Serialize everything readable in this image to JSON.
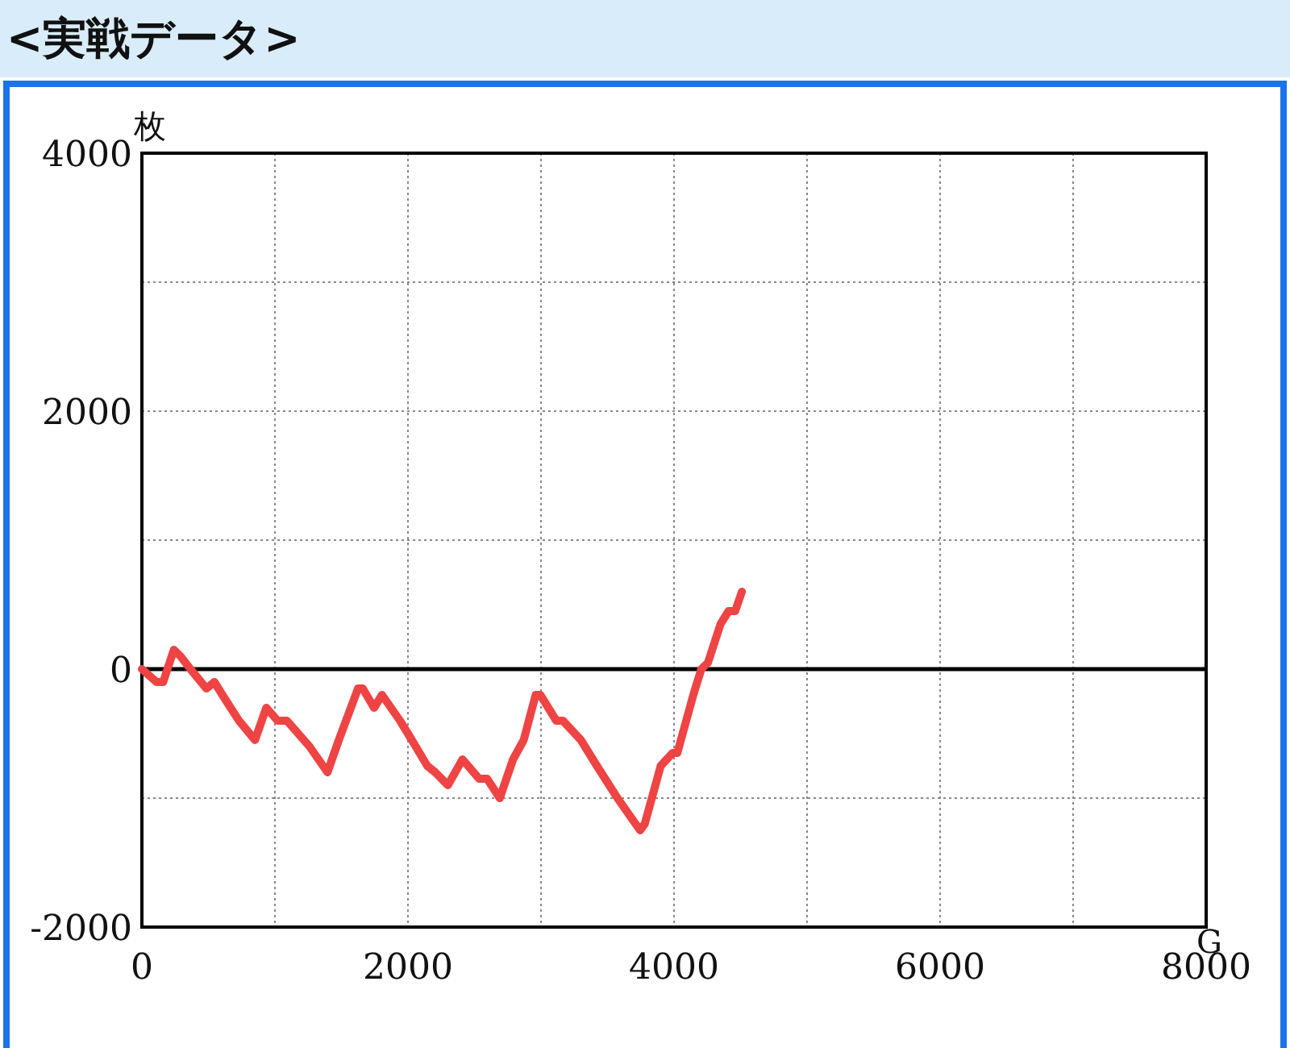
{
  "chart_data": {
    "type": "line",
    "title": "<実戦データ>",
    "xlabel": "G",
    "ylabel": "枚",
    "x": [
      0,
      110,
      160,
      240,
      290,
      365,
      485,
      545,
      605,
      730,
      850,
      935,
      1020,
      1090,
      1260,
      1395,
      1480,
      1625,
      1660,
      1745,
      1805,
      1940,
      2000,
      2145,
      2205,
      2300,
      2410,
      2535,
      2595,
      2690,
      2790,
      2870,
      2960,
      2995,
      3115,
      3165,
      3300,
      3420,
      3575,
      3745,
      3780,
      3900,
      3990,
      4025,
      4145,
      4205,
      4255,
      4350,
      4410,
      4460,
      4510
    ],
    "series": [
      {
        "color": "#ee4444",
        "values": [
          0,
          -100,
          -100,
          150,
          100,
          0,
          -150,
          -100,
          -200,
          -400,
          -550,
          -300,
          -400,
          -400,
          -600,
          -800,
          -550,
          -150,
          -150,
          -300,
          -200,
          -400,
          -500,
          -750,
          -800,
          -900,
          -700,
          -850,
          -850,
          -1000,
          -700,
          -550,
          -200,
          -200,
          -400,
          -400,
          -550,
          -750,
          -1000,
          -1250,
          -1200,
          -750,
          -650,
          -650,
          -200,
          0,
          50,
          350,
          450,
          450,
          600
        ]
      }
    ],
    "xlim": [
      0,
      8000
    ],
    "ylim": [
      -2000,
      4000
    ],
    "xticks": [
      0,
      {
        "value": 1000,
        "label": null
      },
      2000,
      {
        "value": 3000,
        "label": null
      },
      4000,
      {
        "value": 5000,
        "label": null
      },
      6000,
      {
        "value": 7000,
        "label": null
      },
      8000
    ],
    "yticks": [
      -2000,
      {
        "value": -1000,
        "label": null
      },
      0,
      {
        "value": 1000,
        "label": null
      },
      2000,
      {
        "value": 3000,
        "label": null
      },
      4000
    ],
    "grid": true,
    "marker": "none",
    "line_style": "solid",
    "ref_lines": [
      {
        "axis": "y",
        "value": 0,
        "color": "#000000"
      }
    ]
  }
}
